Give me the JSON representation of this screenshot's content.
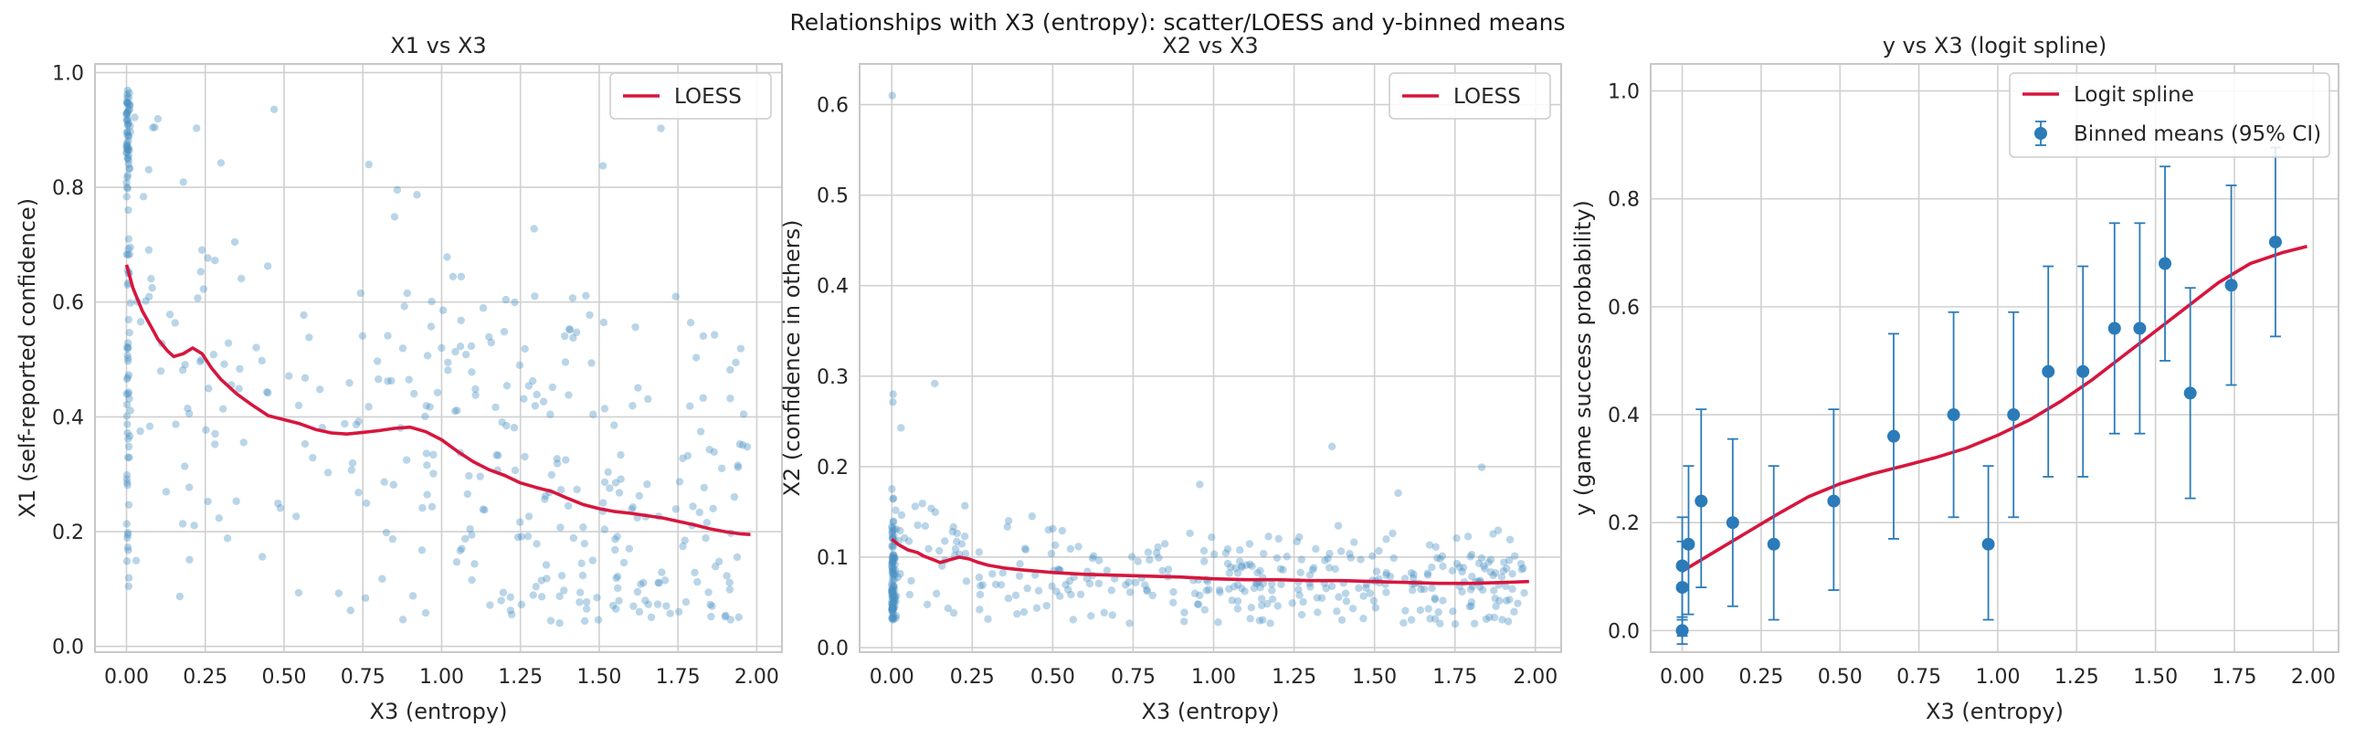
{
  "suptitle": "Relationships with X3 (entropy): scatter/LOESS and y-binned means",
  "colors": {
    "scatter": "#4a90c2",
    "loess": "#d6163e",
    "points": "#2b7bb9",
    "grid": "#d0d0d0",
    "frame": "#c8c8c8"
  },
  "chart_data": [
    {
      "type": "scatter",
      "title": "X1 vs X3",
      "xlabel": "X3 (entropy)",
      "ylabel": "X1 (self-reported confidence)",
      "xlim": [
        -0.1,
        2.08
      ],
      "ylim": [
        -0.01,
        1.015
      ],
      "xticks": [
        "0.00",
        "0.25",
        "0.50",
        "0.75",
        "1.00",
        "1.25",
        "1.50",
        "1.75",
        "2.00"
      ],
      "yticks": [
        "0.0",
        "0.2",
        "0.4",
        "0.6",
        "0.8",
        "1.0"
      ],
      "legend": {
        "position": "top-right",
        "entries": [
          "LOESS"
        ]
      },
      "grid": true,
      "loess": {
        "name": "LOESS",
        "x": [
          0.0,
          0.02,
          0.05,
          0.08,
          0.1,
          0.13,
          0.15,
          0.18,
          0.21,
          0.24,
          0.27,
          0.3,
          0.35,
          0.4,
          0.45,
          0.5,
          0.55,
          0.6,
          0.65,
          0.7,
          0.75,
          0.8,
          0.85,
          0.9,
          0.95,
          1.0,
          1.05,
          1.1,
          1.15,
          1.2,
          1.25,
          1.3,
          1.35,
          1.4,
          1.45,
          1.5,
          1.55,
          1.6,
          1.65,
          1.7,
          1.75,
          1.8,
          1.85,
          1.9,
          1.95,
          1.98
        ],
        "y": [
          0.665,
          0.625,
          0.585,
          0.555,
          0.535,
          0.515,
          0.505,
          0.51,
          0.52,
          0.51,
          0.485,
          0.465,
          0.44,
          0.42,
          0.402,
          0.395,
          0.388,
          0.378,
          0.372,
          0.37,
          0.373,
          0.376,
          0.38,
          0.382,
          0.374,
          0.36,
          0.34,
          0.322,
          0.308,
          0.298,
          0.285,
          0.277,
          0.27,
          0.258,
          0.247,
          0.24,
          0.235,
          0.232,
          0.228,
          0.224,
          0.218,
          0.212,
          0.205,
          0.2,
          0.196,
          0.195
        ]
      },
      "scatter_note": "approx. 450 points, dense column at X3 = 0"
    },
    {
      "type": "scatter",
      "title": "X2 vs X3",
      "xlabel": "X3 (entropy)",
      "ylabel": "X2 (confidence in others)",
      "xlim": [
        -0.1,
        2.08
      ],
      "ylim": [
        -0.005,
        0.645
      ],
      "xticks": [
        "0.00",
        "0.25",
        "0.50",
        "0.75",
        "1.00",
        "1.25",
        "1.50",
        "1.75",
        "2.00"
      ],
      "yticks": [
        "0.0",
        "0.1",
        "0.2",
        "0.3",
        "0.4",
        "0.5",
        "0.6"
      ],
      "legend": {
        "position": "top-right",
        "entries": [
          "LOESS"
        ]
      },
      "grid": true,
      "loess": {
        "name": "LOESS",
        "x": [
          0.0,
          0.02,
          0.05,
          0.08,
          0.1,
          0.13,
          0.15,
          0.18,
          0.21,
          0.24,
          0.27,
          0.3,
          0.35,
          0.4,
          0.5,
          0.6,
          0.7,
          0.8,
          0.9,
          1.0,
          1.1,
          1.2,
          1.3,
          1.4,
          1.5,
          1.6,
          1.7,
          1.8,
          1.9,
          1.98
        ],
        "y": [
          0.12,
          0.114,
          0.108,
          0.105,
          0.101,
          0.097,
          0.094,
          0.097,
          0.1,
          0.098,
          0.094,
          0.091,
          0.088,
          0.086,
          0.083,
          0.081,
          0.08,
          0.079,
          0.078,
          0.076,
          0.075,
          0.075,
          0.074,
          0.074,
          0.073,
          0.072,
          0.071,
          0.071,
          0.072,
          0.073
        ]
      },
      "scatter_note": "approx. 450 points, dense column at X3 = 0"
    },
    {
      "type": "line",
      "title": "y vs X3 (logit spline)",
      "xlabel": "X3 (entropy)",
      "ylabel": "y (game success probability)",
      "xlim": [
        -0.1,
        2.08
      ],
      "ylim": [
        -0.04,
        1.05
      ],
      "xticks": [
        "0.00",
        "0.25",
        "0.50",
        "0.75",
        "1.00",
        "1.25",
        "1.50",
        "1.75",
        "2.00"
      ],
      "yticks": [
        "0.0",
        "0.2",
        "0.4",
        "0.6",
        "0.8",
        "1.0"
      ],
      "legend": {
        "position": "top-right",
        "entries": [
          "Logit spline",
          "Binned means (95% CI)"
        ]
      },
      "grid": true,
      "spline": {
        "name": "Logit spline",
        "x": [
          0.0,
          0.1,
          0.2,
          0.3,
          0.4,
          0.5,
          0.6,
          0.7,
          0.8,
          0.9,
          1.0,
          1.1,
          1.2,
          1.3,
          1.4,
          1.5,
          1.6,
          1.7,
          1.8,
          1.9,
          1.98
        ],
        "y": [
          0.11,
          0.145,
          0.18,
          0.215,
          0.248,
          0.272,
          0.29,
          0.305,
          0.32,
          0.338,
          0.362,
          0.39,
          0.425,
          0.465,
          0.51,
          0.555,
          0.6,
          0.645,
          0.68,
          0.7,
          0.712
        ]
      },
      "binned": {
        "name": "Binned means (95% CI)",
        "points": [
          {
            "x": 0.0,
            "y": 0.0,
            "lo": -0.025,
            "hi": 0.02
          },
          {
            "x": 0.0,
            "y": 0.08,
            "lo": -0.01,
            "hi": 0.165
          },
          {
            "x": 0.0,
            "y": 0.12,
            "lo": 0.025,
            "hi": 0.21
          },
          {
            "x": 0.02,
            "y": 0.16,
            "lo": 0.03,
            "hi": 0.305
          },
          {
            "x": 0.06,
            "y": 0.24,
            "lo": 0.08,
            "hi": 0.41
          },
          {
            "x": 0.16,
            "y": 0.2,
            "lo": 0.045,
            "hi": 0.355
          },
          {
            "x": 0.29,
            "y": 0.16,
            "lo": 0.02,
            "hi": 0.305
          },
          {
            "x": 0.48,
            "y": 0.24,
            "lo": 0.075,
            "hi": 0.41
          },
          {
            "x": 0.67,
            "y": 0.36,
            "lo": 0.17,
            "hi": 0.55
          },
          {
            "x": 0.86,
            "y": 0.4,
            "lo": 0.21,
            "hi": 0.59
          },
          {
            "x": 0.97,
            "y": 0.16,
            "lo": 0.02,
            "hi": 0.305
          },
          {
            "x": 1.05,
            "y": 0.4,
            "lo": 0.21,
            "hi": 0.59
          },
          {
            "x": 1.16,
            "y": 0.48,
            "lo": 0.285,
            "hi": 0.675
          },
          {
            "x": 1.27,
            "y": 0.48,
            "lo": 0.285,
            "hi": 0.675
          },
          {
            "x": 1.37,
            "y": 0.56,
            "lo": 0.365,
            "hi": 0.755
          },
          {
            "x": 1.45,
            "y": 0.56,
            "lo": 0.365,
            "hi": 0.755
          },
          {
            "x": 1.53,
            "y": 0.68,
            "lo": 0.5,
            "hi": 0.86
          },
          {
            "x": 1.61,
            "y": 0.44,
            "lo": 0.245,
            "hi": 0.635
          },
          {
            "x": 1.74,
            "y": 0.64,
            "lo": 0.455,
            "hi": 0.825
          },
          {
            "x": 1.88,
            "y": 0.72,
            "lo": 0.545,
            "hi": 0.895
          }
        ]
      }
    }
  ]
}
